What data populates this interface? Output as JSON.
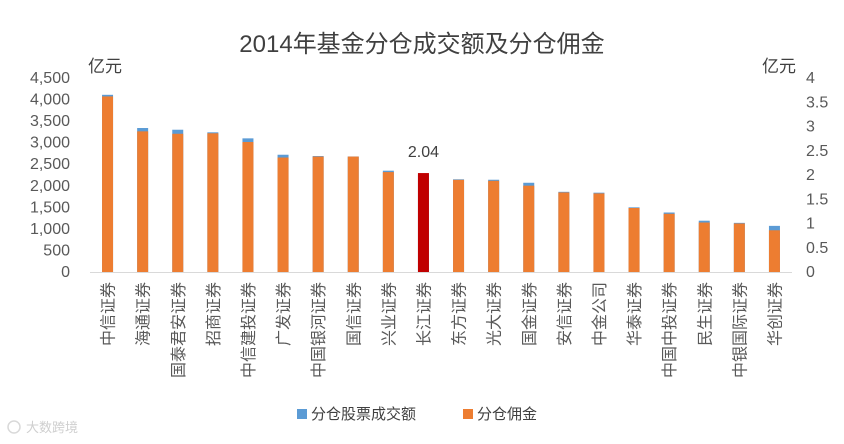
{
  "chart_data": {
    "type": "bar",
    "title": "2014年基金分仓成交额及分仓佣金",
    "left_unit": "亿元",
    "right_unit": "亿元",
    "left_axis": {
      "min": 0,
      "max": 4500,
      "step": 500,
      "ticks": [
        "0",
        "500",
        "1,000",
        "1,500",
        "2,000",
        "2,500",
        "3,000",
        "3,500",
        "4,000",
        "4,500"
      ]
    },
    "right_axis": {
      "min": 0,
      "max": 4,
      "step": 0.5,
      "ticks": [
        "0",
        "0.5",
        "1",
        "1.5",
        "2",
        "2.5",
        "3",
        "3.5",
        "4"
      ]
    },
    "categories": [
      "中信证券",
      "海通证券",
      "国泰君安证券",
      "招商证券",
      "中信建投证券",
      "广发证券",
      "中国银河证券",
      "国信证券",
      "兴业证券",
      "长江证券",
      "东方证券",
      "光大证券",
      "国金证券",
      "安信证券",
      "中金公司",
      "华泰证券",
      "中国中投证券",
      "民生证券",
      "中银国际证券",
      "华创证券"
    ],
    "series": [
      {
        "name": "分仓股票成交额",
        "axis": "left",
        "color": "#5B9BD5",
        "values": [
          4110,
          3340,
          3300,
          3240,
          3100,
          2720,
          2690,
          2680,
          2350,
          2260,
          2150,
          2140,
          2070,
          1860,
          1840,
          1500,
          1380,
          1190,
          1140,
          1070
        ]
      },
      {
        "name": "分仓佣金",
        "axis": "right",
        "color": "#ED7D31",
        "values": [
          3.62,
          2.9,
          2.85,
          2.86,
          2.68,
          2.36,
          2.38,
          2.38,
          2.06,
          2.04,
          1.9,
          1.88,
          1.78,
          1.64,
          1.62,
          1.32,
          1.2,
          1.02,
          1.0,
          0.86
        ]
      }
    ],
    "highlight": {
      "index": 9,
      "color": "#C00000",
      "label": "2.04"
    },
    "legend": {
      "position": "bottom",
      "items": [
        "分仓股票成交额",
        "分仓佣金"
      ]
    },
    "grid": false
  },
  "watermark": "大数跨境"
}
